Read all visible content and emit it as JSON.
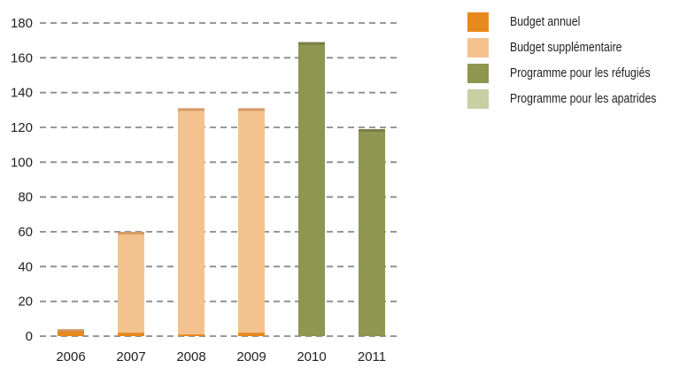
{
  "chart_data": {
    "type": "bar",
    "stacked": true,
    "categories": [
      "2006",
      "2007",
      "2008",
      "2009",
      "2010",
      "2011"
    ],
    "series": [
      {
        "name": "Budget annuel",
        "color": "#e8891e",
        "values": [
          3,
          2,
          1,
          2,
          0,
          0
        ]
      },
      {
        "name": "Budget supplémentaire",
        "color": "#f4c28f",
        "values": [
          1,
          58,
          130,
          129,
          0,
          0
        ]
      },
      {
        "name": "Programme pour les réfugiés",
        "color": "#8e9650",
        "values": [
          0,
          0,
          0,
          0,
          169,
          119
        ]
      },
      {
        "name": "Programme pour les apatrides",
        "color": "#c8cfa3",
        "values": [
          0,
          0,
          0,
          0,
          0,
          0
        ]
      }
    ],
    "y_ticks": [
      "0",
      "20",
      "40",
      "60",
      "80",
      "100",
      "120",
      "140",
      "160",
      "180"
    ],
    "ylim": [
      0,
      180
    ],
    "grid": true,
    "legend_position": "right"
  }
}
